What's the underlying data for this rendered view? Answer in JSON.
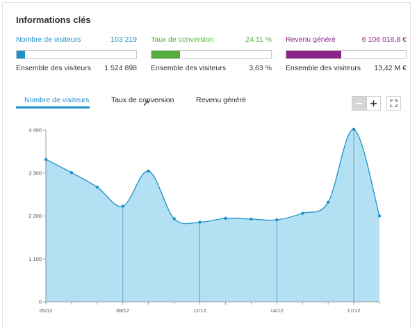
{
  "section_title": "Informations clés",
  "kpis": [
    {
      "label": "Nombre de visiteurs",
      "value": "103 219",
      "total_label": "Ensemble des visiteurs",
      "total_value": "1 524 898",
      "color": "#1f8fc9",
      "fill_fraction": 0.068
    },
    {
      "label": "Taux de conversion",
      "value": "24.11 %",
      "total_label": "Ensemble des visiteurs",
      "total_value": "3,63  %",
      "color": "#55ad3b",
      "fill_fraction": 0.24
    },
    {
      "label": "Revenu généré",
      "value": "6 106 016,8  €",
      "total_label": "Ensemble des visiteurs",
      "total_value": "13,42  M €",
      "color": "#8b2486",
      "fill_fraction": 0.46
    }
  ],
  "tabs": [
    "Nombre de visiteurs",
    "Taux de conversion",
    "Revenu généré"
  ],
  "active_tab": 0,
  "zoom": {
    "out_icon": "minus-icon",
    "in_icon": "plus-icon",
    "fullscreen_icon": "expand-icon"
  },
  "chart_data": {
    "type": "area",
    "x": [
      "05/12",
      "06/12",
      "07/12",
      "08/12",
      "09/12",
      "10/12",
      "11/12",
      "12/12",
      "13/12",
      "14/12",
      "15/12",
      "16/12",
      "17/12",
      "18/12"
    ],
    "xtick_labels": [
      "05/12",
      "08/12",
      "11/12",
      "14/12",
      "17/12"
    ],
    "values": [
      3650,
      3310,
      2940,
      2450,
      3350,
      2130,
      2040,
      2140,
      2120,
      2100,
      2270,
      2550,
      4420,
      2200
    ],
    "yticks": [
      0,
      1100,
      2200,
      3300,
      4400
    ],
    "ytick_labels": [
      "0",
      "1 100",
      "2 200",
      "3 300",
      "4 400"
    ],
    "ylim": [
      0,
      4400
    ],
    "line_color": "#1f8fc9",
    "area_color": "#b3e1f3"
  }
}
